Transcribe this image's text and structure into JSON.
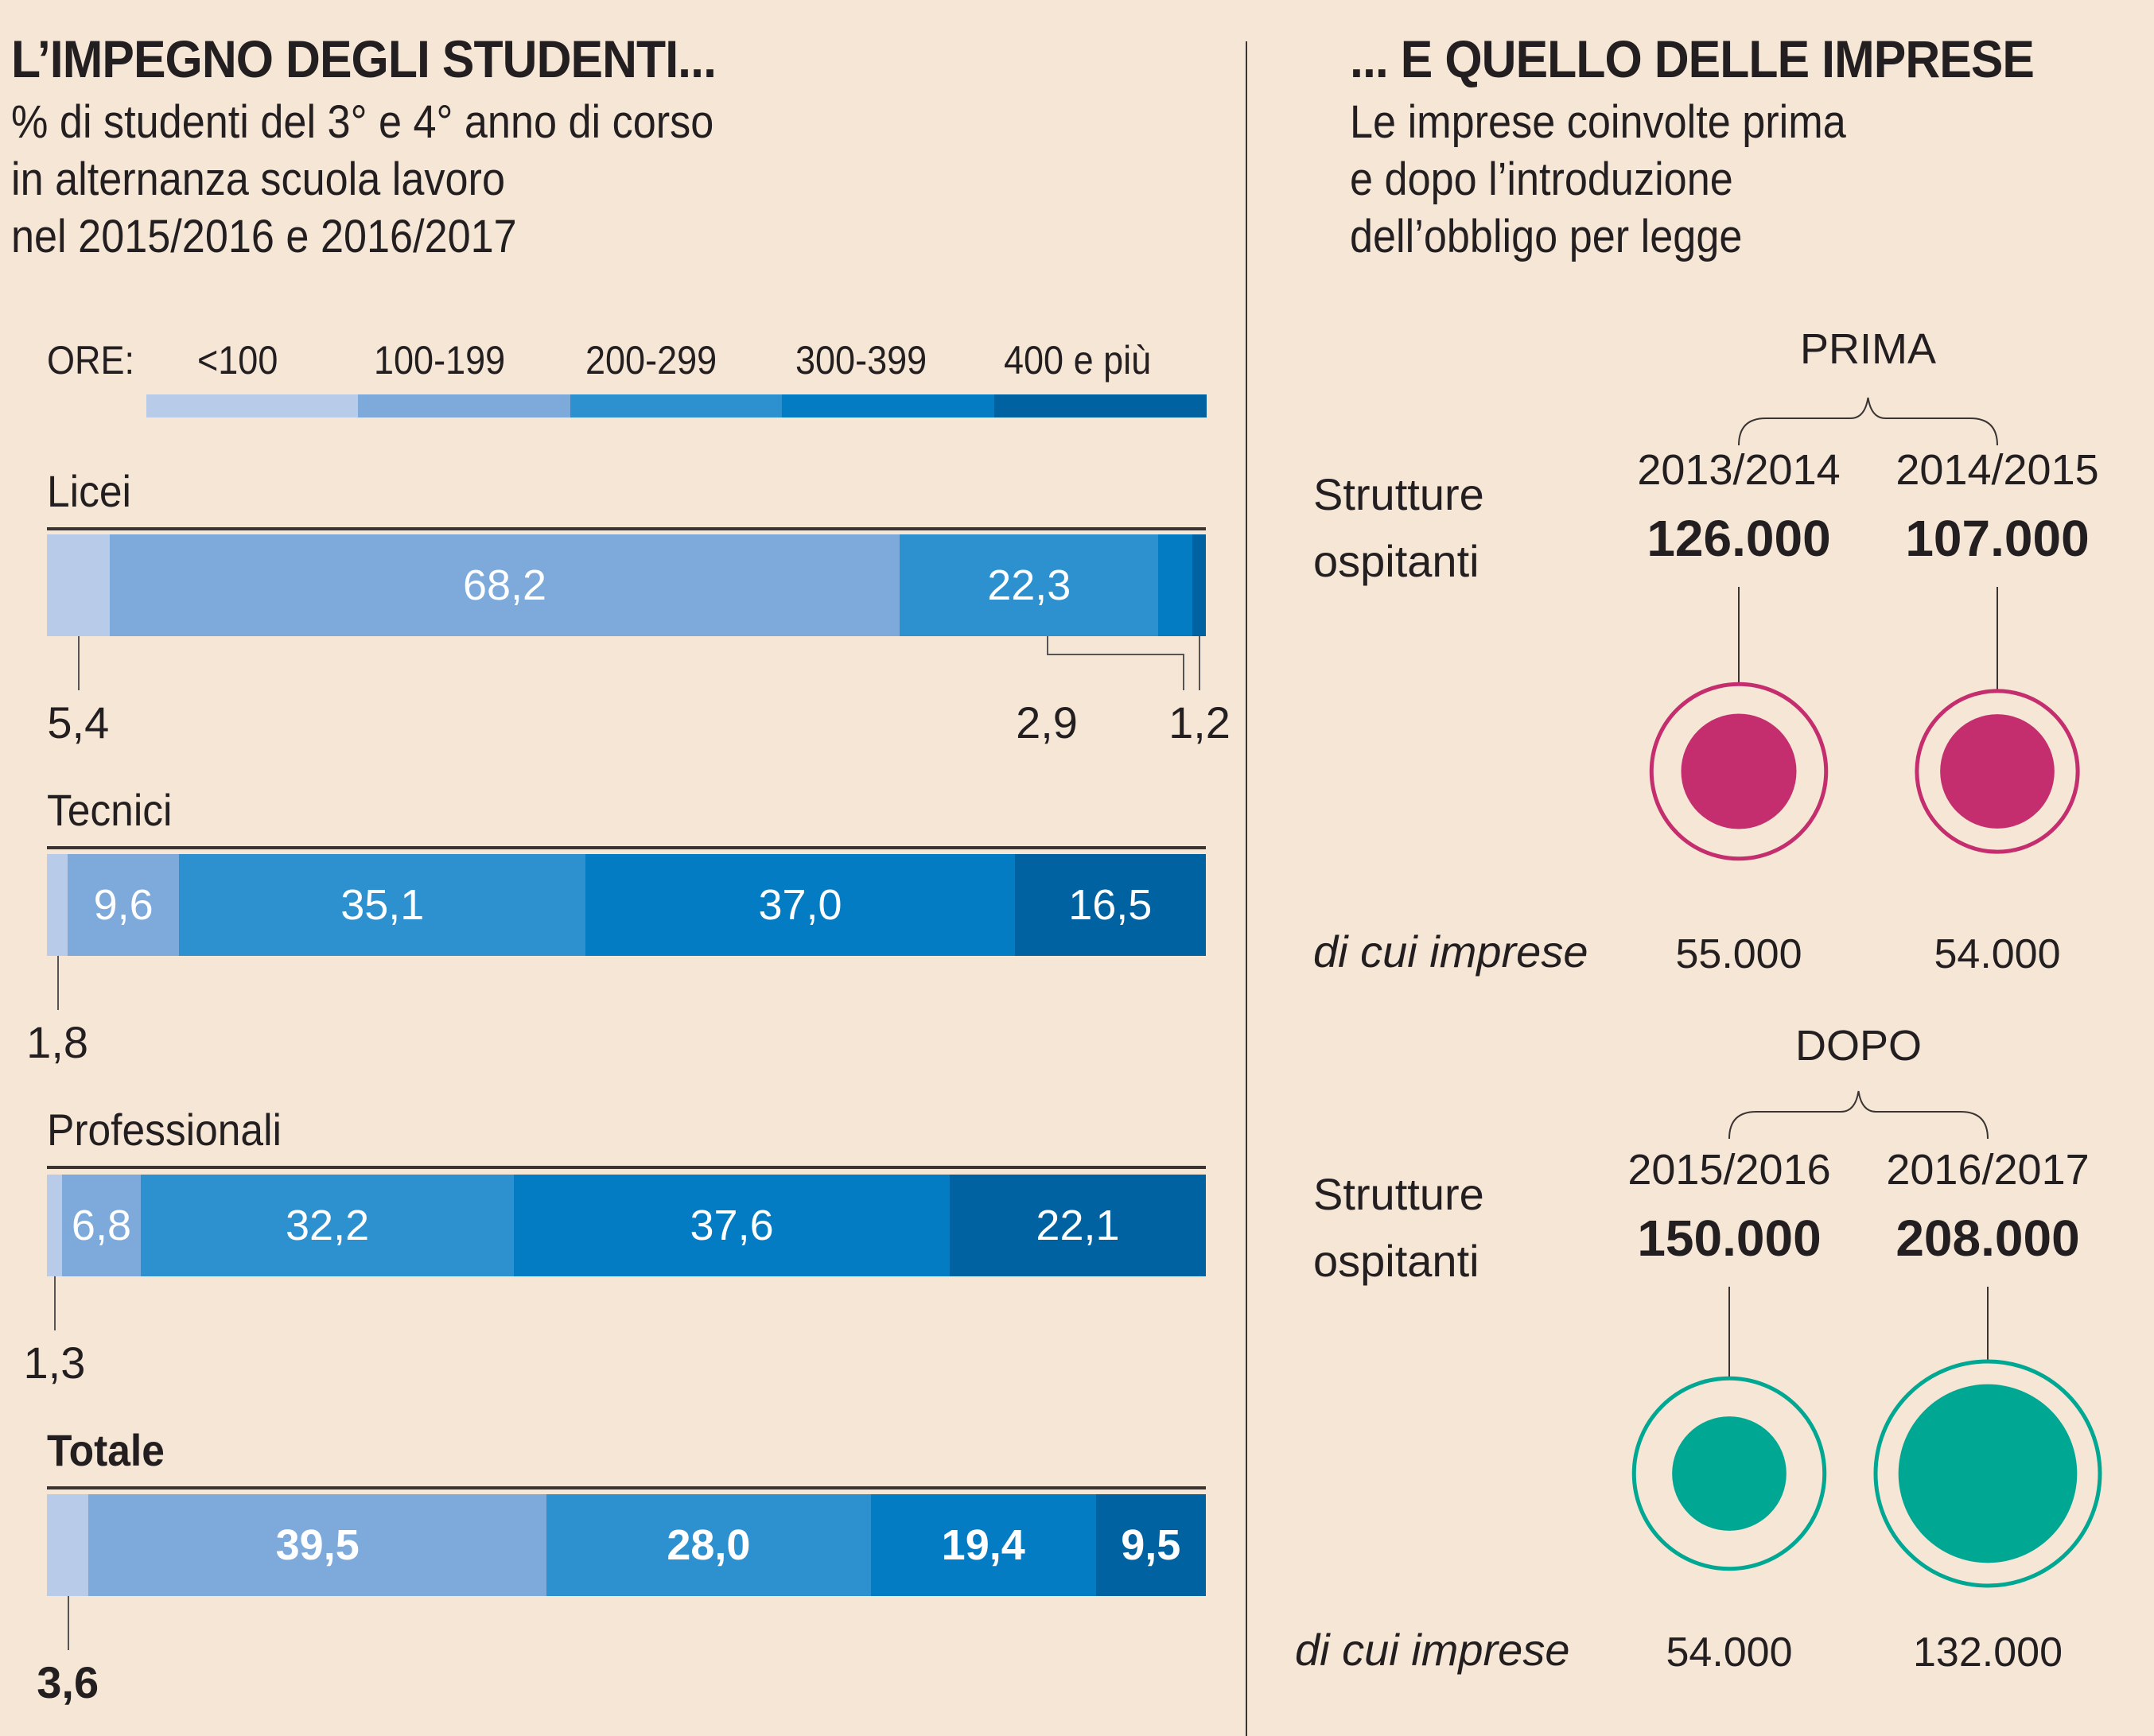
{
  "left": {
    "title": "L’IMPEGNO DEGLI STUDENTI...",
    "subtitle_lines": [
      "% di studenti del 3° e 4° anno di corso",
      "in alternanza scuola lavoro",
      "nel 2015/2016 e 2016/2017"
    ],
    "legend_prefix": "ORE:"
  },
  "right": {
    "title": "... E QUELLO DELLE IMPRESE",
    "subtitle_lines": [
      "Le imprese coinvolte prima",
      "e dopo l’introduzione",
      "dell’obbligo per legge"
    ],
    "row_label_lines": [
      "Strutture",
      "ospitanti"
    ],
    "sub_label": "di cui imprese"
  },
  "chart_data": [
    {
      "type": "bar",
      "orientation": "horizontal-stacked-100",
      "title": "L’IMPEGNO DEGLI STUDENTI...",
      "subtitle": "% di studenti del 3° e 4° anno di corso in alternanza scuola lavoro nel 2015/2016 e 2016/2017",
      "legend_title": "ORE:",
      "legend_position": "top",
      "series": [
        {
          "name": "<100",
          "color": "#b8cbe9"
        },
        {
          "name": "100-199",
          "color": "#7daadb"
        },
        {
          "name": "200-299",
          "color": "#2e91cf"
        },
        {
          "name": "300-399",
          "color": "#037cc4"
        },
        {
          "name": "400 e più",
          "color": "#0062a0"
        }
      ],
      "categories": [
        {
          "name": "Licei",
          "bold": false,
          "values": [
            5.4,
            68.2,
            22.3,
            2.9,
            1.2
          ],
          "labels": [
            "5,4",
            "68,2",
            "22,3",
            "2,9",
            "1,2"
          ],
          "outside": [
            0,
            3,
            4
          ]
        },
        {
          "name": "Tecnici",
          "bold": false,
          "values": [
            1.8,
            9.6,
            35.1,
            37.0,
            16.5
          ],
          "labels": [
            "1,8",
            "9,6",
            "35,1",
            "37,0",
            "16,5"
          ],
          "outside": [
            0
          ]
        },
        {
          "name": "Professionali",
          "bold": false,
          "values": [
            1.3,
            6.8,
            32.2,
            37.6,
            22.1
          ],
          "labels": [
            "1,3",
            "6,8",
            "32,2",
            "37,6",
            "22,1"
          ],
          "outside": [
            0
          ]
        },
        {
          "name": "Totale",
          "bold": true,
          "values": [
            3.6,
            39.5,
            28.0,
            19.4,
            9.5
          ],
          "labels": [
            "3,6",
            "39,5",
            "28,0",
            "19,4",
            "9,5"
          ],
          "outside": [
            0
          ]
        }
      ],
      "xlim": [
        0,
        100
      ]
    },
    {
      "type": "bubble",
      "title": "... E QUELLO DELLE IMPRESE",
      "subtitle": "Le imprese coinvolte prima e dopo l’introduzione dell’obbligo per legge",
      "groups": [
        {
          "name": "PRIMA",
          "color": "#c42e6e",
          "periods": [
            {
              "year": "2013/2014",
              "strutture": 126000,
              "strutture_label": "126.000",
              "imprese": 55000,
              "imprese_label": "55.000"
            },
            {
              "year": "2014/2015",
              "strutture": 107000,
              "strutture_label": "107.000",
              "imprese": 54000,
              "imprese_label": "54.000"
            }
          ]
        },
        {
          "name": "DOPO",
          "color": "#00a792",
          "periods": [
            {
              "year": "2015/2016",
              "strutture": 150000,
              "strutture_label": "150.000",
              "imprese": 54000,
              "imprese_label": "54.000"
            },
            {
              "year": "2016/2017",
              "strutture": 208000,
              "strutture_label": "208.000",
              "imprese": 132000,
              "imprese_label": "132.000"
            }
          ]
        }
      ]
    }
  ]
}
